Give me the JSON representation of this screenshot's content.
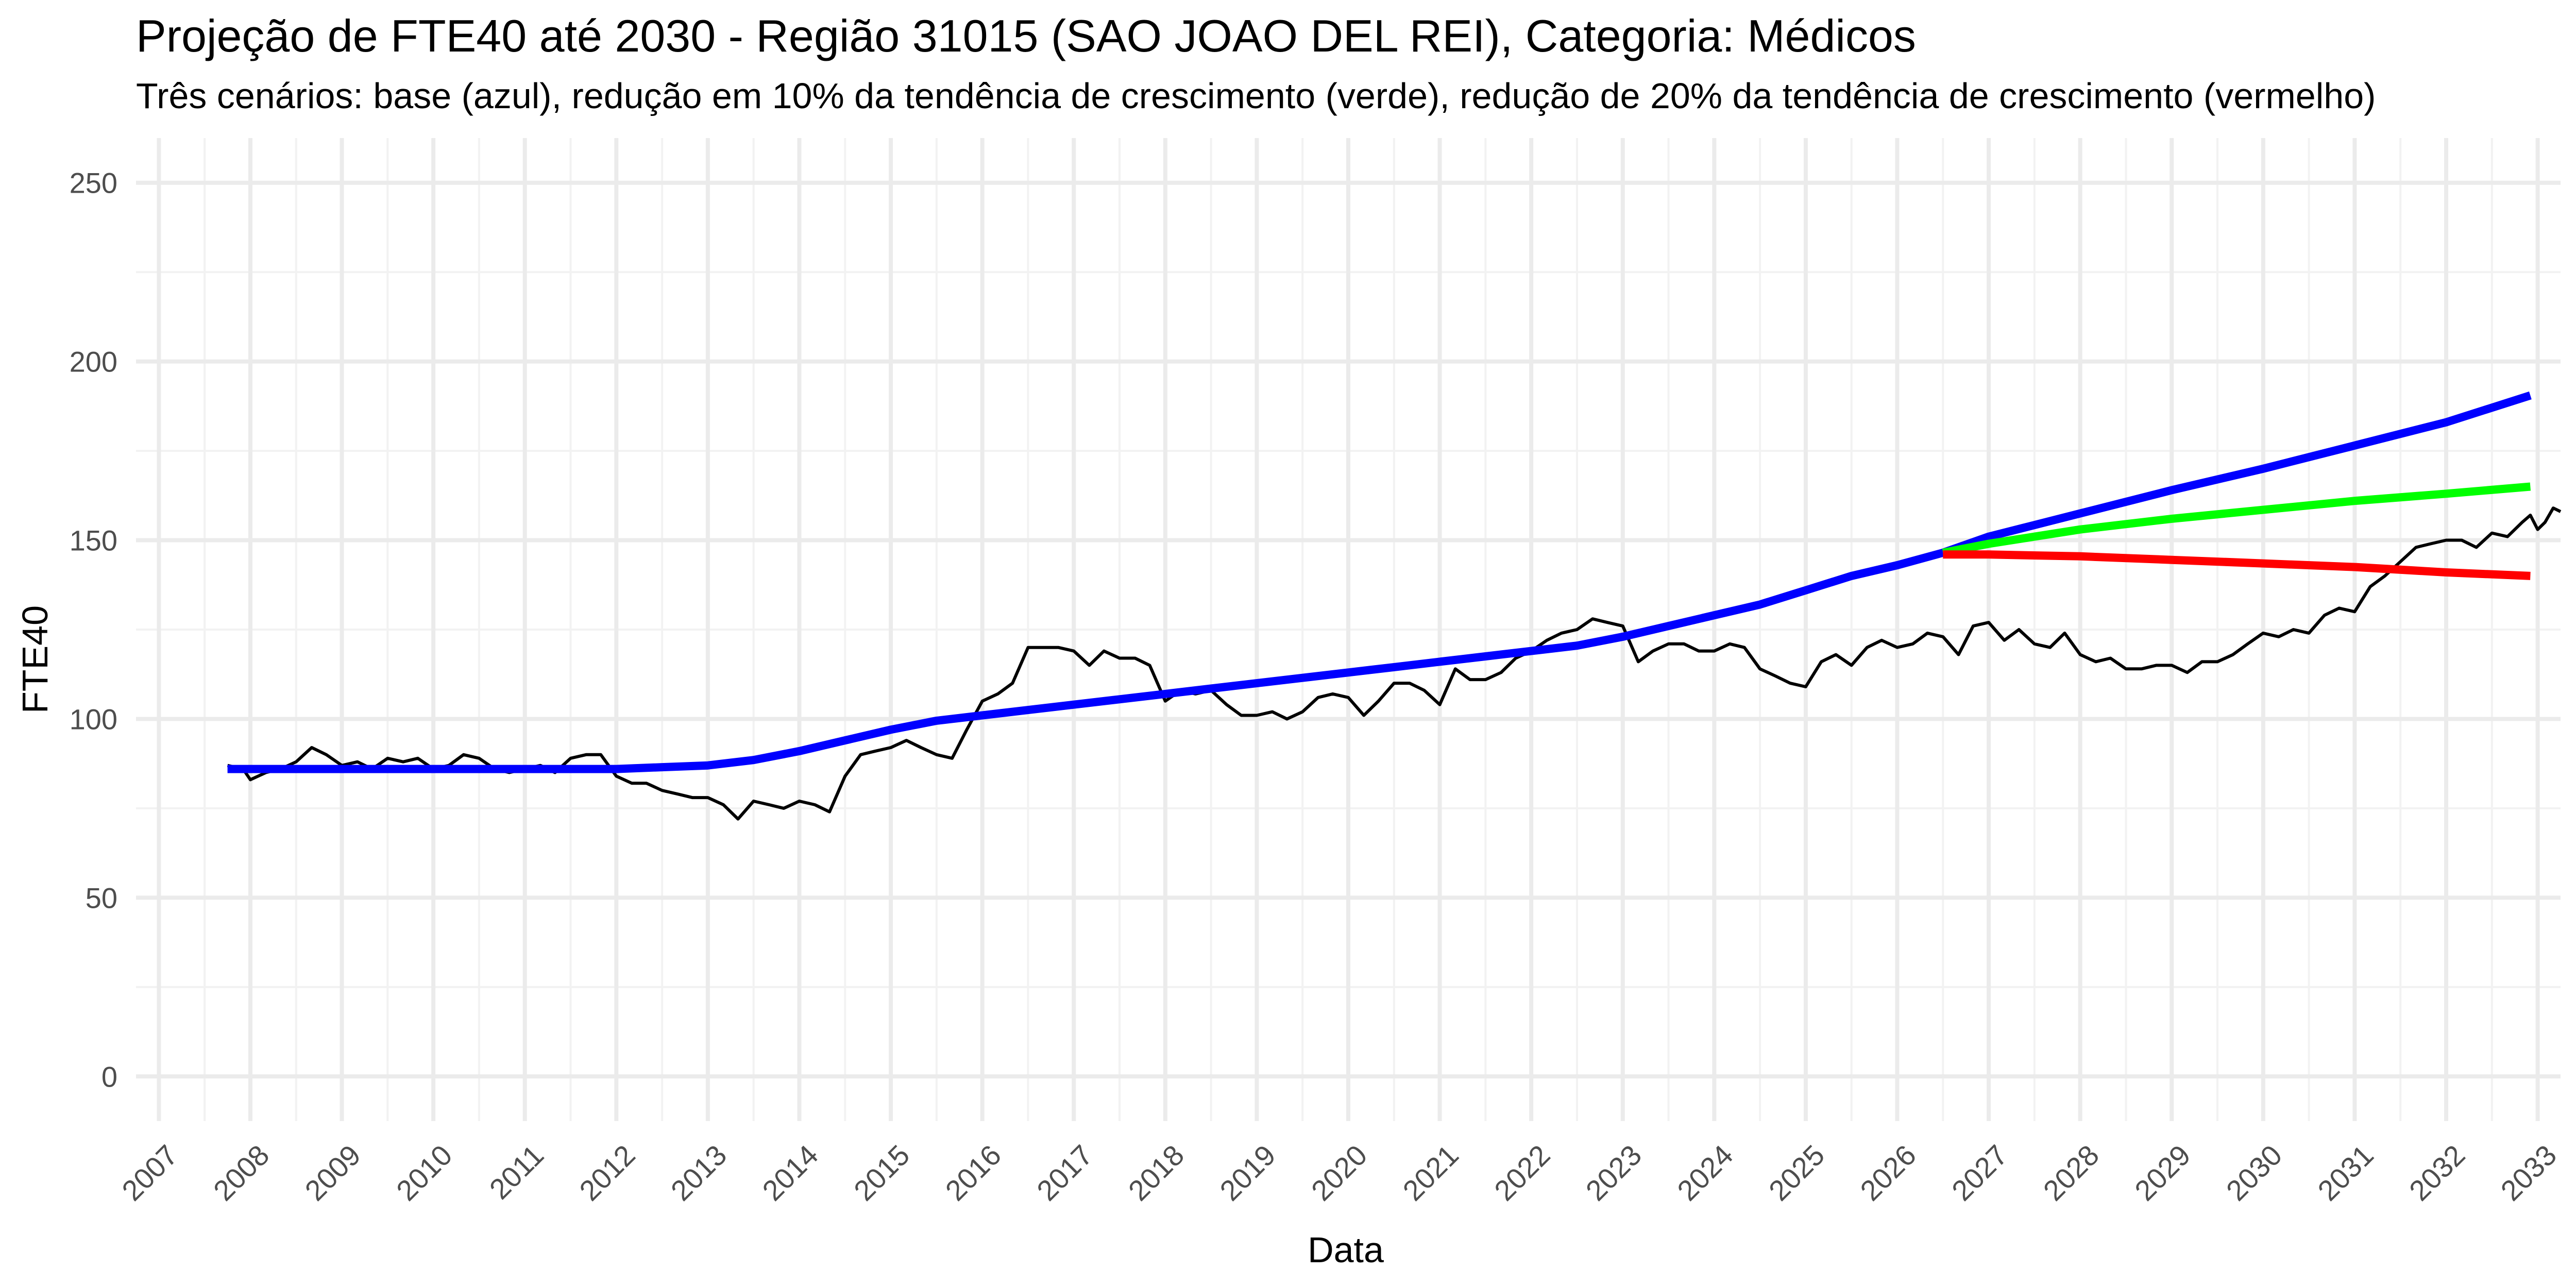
{
  "chart_data": {
    "type": "line",
    "title": "Projeção de FTE40 até 2030 - Região 31015 (SAO JOAO DEL REI), Categoria: Médicos",
    "subtitle": "Três cenários: base (azul), redução em 10% da tendência de crescimento (verde), redução de 20% da tendência de crescimento (vermelho)",
    "xlabel": "Data",
    "ylabel": "FTE40",
    "xlim": [
      2006.75,
      2033.25
    ],
    "ylim": [
      -12.5,
      262.5
    ],
    "x_ticks": [
      2007,
      2008,
      2009,
      2010,
      2011,
      2012,
      2013,
      2014,
      2015,
      2016,
      2017,
      2018,
      2019,
      2020,
      2021,
      2022,
      2023,
      2024,
      2025,
      2026,
      2027,
      2028,
      2029,
      2030,
      2031,
      2032,
      2033
    ],
    "y_ticks": [
      0,
      50,
      100,
      150,
      200,
      250
    ],
    "grid": true,
    "legend": "none",
    "series": [
      {
        "color": "#000000",
        "values": [
          [
            2007.75,
            87
          ],
          [
            2007.92,
            86
          ],
          [
            2008.0,
            83
          ],
          [
            2008.17,
            85
          ],
          [
            2008.33,
            86
          ],
          [
            2008.5,
            88
          ],
          [
            2008.67,
            92
          ],
          [
            2008.83,
            90
          ],
          [
            2009.0,
            87
          ],
          [
            2009.17,
            88
          ],
          [
            2009.33,
            86
          ],
          [
            2009.5,
            89
          ],
          [
            2009.67,
            88
          ],
          [
            2009.83,
            89
          ],
          [
            2010.0,
            86
          ],
          [
            2010.17,
            87
          ],
          [
            2010.33,
            90
          ],
          [
            2010.5,
            89
          ],
          [
            2010.67,
            86
          ],
          [
            2010.83,
            85
          ],
          [
            2011.0,
            86
          ],
          [
            2011.17,
            87
          ],
          [
            2011.33,
            85
          ],
          [
            2011.5,
            89
          ],
          [
            2011.67,
            90
          ],
          [
            2011.83,
            90
          ],
          [
            2012.0,
            84
          ],
          [
            2012.17,
            82
          ],
          [
            2012.33,
            82
          ],
          [
            2012.5,
            80
          ],
          [
            2012.67,
            79
          ],
          [
            2012.83,
            78
          ],
          [
            2013.0,
            78
          ],
          [
            2013.17,
            76
          ],
          [
            2013.33,
            72
          ],
          [
            2013.5,
            77
          ],
          [
            2013.67,
            76
          ],
          [
            2013.83,
            75
          ],
          [
            2014.0,
            77
          ],
          [
            2014.17,
            76
          ],
          [
            2014.33,
            74
          ],
          [
            2014.5,
            84
          ],
          [
            2014.67,
            90
          ],
          [
            2014.83,
            91
          ],
          [
            2015.0,
            92
          ],
          [
            2015.17,
            94
          ],
          [
            2015.33,
            92
          ],
          [
            2015.5,
            90
          ],
          [
            2015.67,
            89
          ],
          [
            2015.83,
            97
          ],
          [
            2016.0,
            105
          ],
          [
            2016.17,
            107
          ],
          [
            2016.33,
            110
          ],
          [
            2016.5,
            120
          ],
          [
            2016.67,
            120
          ],
          [
            2016.83,
            120
          ],
          [
            2017.0,
            119
          ],
          [
            2017.17,
            115
          ],
          [
            2017.33,
            119
          ],
          [
            2017.5,
            117
          ],
          [
            2017.67,
            117
          ],
          [
            2017.83,
            115
          ],
          [
            2018.0,
            105
          ],
          [
            2018.17,
            108
          ],
          [
            2018.33,
            107
          ],
          [
            2018.5,
            108
          ],
          [
            2018.67,
            104
          ],
          [
            2018.83,
            101
          ],
          [
            2019.0,
            101
          ],
          [
            2019.17,
            102
          ],
          [
            2019.33,
            100
          ],
          [
            2019.5,
            102
          ],
          [
            2019.67,
            106
          ],
          [
            2019.83,
            107
          ],
          [
            2020.0,
            106
          ],
          [
            2020.17,
            101
          ],
          [
            2020.33,
            105
          ],
          [
            2020.5,
            110
          ],
          [
            2020.67,
            110
          ],
          [
            2020.83,
            108
          ],
          [
            2021.0,
            104
          ],
          [
            2021.17,
            114
          ],
          [
            2021.33,
            111
          ],
          [
            2021.5,
            111
          ],
          [
            2021.67,
            113
          ],
          [
            2021.83,
            117
          ],
          [
            2022.0,
            119
          ],
          [
            2022.17,
            122
          ],
          [
            2022.33,
            124
          ],
          [
            2022.5,
            125
          ],
          [
            2022.67,
            128
          ],
          [
            2022.83,
            127
          ],
          [
            2023.0,
            126
          ],
          [
            2023.17,
            116
          ],
          [
            2023.33,
            119
          ],
          [
            2023.5,
            121
          ],
          [
            2023.67,
            121
          ],
          [
            2023.83,
            119
          ],
          [
            2024.0,
            119
          ],
          [
            2024.17,
            121
          ],
          [
            2024.33,
            120
          ],
          [
            2024.5,
            114
          ],
          [
            2024.67,
            112
          ],
          [
            2024.83,
            110
          ],
          [
            2025.0,
            109
          ],
          [
            2025.17,
            116
          ],
          [
            2025.33,
            118
          ],
          [
            2025.5,
            115
          ],
          [
            2025.67,
            120
          ],
          [
            2025.83,
            122
          ],
          [
            2026.0,
            120
          ],
          [
            2026.17,
            121
          ],
          [
            2026.33,
            124
          ],
          [
            2026.5,
            123
          ],
          [
            2026.67,
            118
          ],
          [
            2026.83,
            126
          ],
          [
            2027.0,
            127
          ],
          [
            2027.17,
            122
          ],
          [
            2027.33,
            125
          ],
          [
            2027.5,
            121
          ],
          [
            2027.67,
            120
          ],
          [
            2027.83,
            124
          ],
          [
            2028.0,
            118
          ],
          [
            2028.17,
            116
          ],
          [
            2028.33,
            117
          ],
          [
            2028.5,
            114
          ],
          [
            2028.67,
            114
          ],
          [
            2028.83,
            115
          ],
          [
            2029.0,
            115
          ],
          [
            2029.17,
            113
          ],
          [
            2029.33,
            116
          ],
          [
            2029.5,
            116
          ],
          [
            2029.67,
            118
          ],
          [
            2029.83,
            121
          ],
          [
            2030.0,
            124
          ],
          [
            2030.17,
            123
          ],
          [
            2030.33,
            125
          ],
          [
            2030.5,
            124
          ],
          [
            2030.67,
            129
          ],
          [
            2030.83,
            131
          ],
          [
            2031.0,
            130
          ],
          [
            2031.17,
            137
          ],
          [
            2031.33,
            140
          ],
          [
            2031.5,
            144
          ],
          [
            2031.67,
            148
          ],
          [
            2031.83,
            149
          ],
          [
            2032.0,
            150
          ],
          [
            2032.17,
            150
          ],
          [
            2032.33,
            148
          ],
          [
            2032.5,
            152
          ],
          [
            2032.67,
            151
          ],
          [
            2032.83,
            155
          ],
          [
            2032.92,
            157
          ],
          [
            2033.0,
            153
          ],
          [
            2033.08,
            155
          ],
          [
            2033.17,
            159
          ],
          [
            2033.25,
            158
          ]
        ]
      },
      {
        "color": "#0000ff",
        "values": [
          [
            2007.75,
            86
          ],
          [
            2008.5,
            86
          ],
          [
            2009.5,
            86
          ],
          [
            2010.5,
            86
          ],
          [
            2011.5,
            86
          ],
          [
            2012.0,
            86
          ],
          [
            2012.5,
            86.5
          ],
          [
            2013.0,
            87
          ],
          [
            2013.5,
            88.5
          ],
          [
            2014.0,
            91
          ],
          [
            2014.5,
            94
          ],
          [
            2015.0,
            97
          ],
          [
            2015.5,
            99.5
          ],
          [
            2016.0,
            101
          ],
          [
            2016.5,
            102.5
          ],
          [
            2017.0,
            104
          ],
          [
            2017.5,
            105.5
          ],
          [
            2018.0,
            107
          ],
          [
            2018.5,
            108.5
          ],
          [
            2019.0,
            110
          ],
          [
            2019.5,
            111.5
          ],
          [
            2020.0,
            113
          ],
          [
            2020.5,
            114.5
          ],
          [
            2021.0,
            116
          ],
          [
            2021.5,
            117.5
          ],
          [
            2022.0,
            119
          ],
          [
            2022.5,
            120.5
          ],
          [
            2023.0,
            123
          ],
          [
            2023.5,
            126
          ],
          [
            2024.0,
            129
          ],
          [
            2024.5,
            132
          ],
          [
            2025.0,
            136
          ],
          [
            2025.5,
            140
          ],
          [
            2026.0,
            143
          ],
          [
            2026.5,
            146.5
          ]
        ]
      },
      {
        "color": "#0000ff",
        "values": [
          [
            2026.5,
            146.5
          ],
          [
            2027.0,
            151
          ],
          [
            2028.0,
            157.5
          ],
          [
            2029.0,
            164
          ],
          [
            2030.0,
            170
          ],
          [
            2031.0,
            176.5
          ],
          [
            2032.0,
            183
          ],
          [
            2032.92,
            190.5
          ]
        ]
      },
      {
        "color": "#00ff00",
        "values": [
          [
            2026.5,
            146.5
          ],
          [
            2027.0,
            149
          ],
          [
            2028.0,
            153
          ],
          [
            2029.0,
            156
          ],
          [
            2030.0,
            158.5
          ],
          [
            2031.0,
            161
          ],
          [
            2032.0,
            163
          ],
          [
            2032.92,
            165
          ]
        ]
      },
      {
        "color": "#ff0000",
        "values": [
          [
            2026.5,
            146
          ],
          [
            2027.0,
            146
          ],
          [
            2028.0,
            145.5
          ],
          [
            2029.0,
            144.5
          ],
          [
            2030.0,
            143.5
          ],
          [
            2031.0,
            142.5
          ],
          [
            2032.0,
            141
          ],
          [
            2032.92,
            140
          ]
        ]
      }
    ]
  }
}
